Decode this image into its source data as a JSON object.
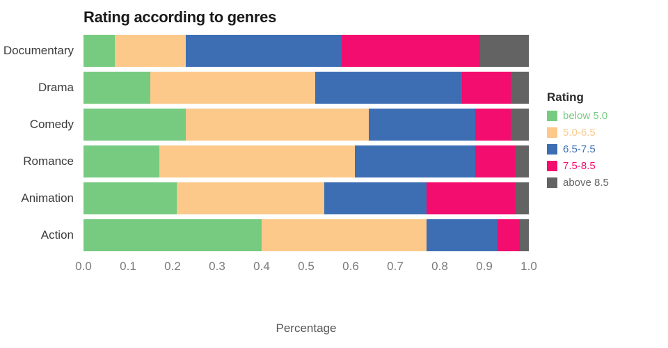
{
  "legend": {
    "title": "Rating",
    "entries": [
      {
        "label": "below 5.0",
        "color": "#76cb80"
      },
      {
        "label": "5.0-6.5",
        "color": "#fcc98b"
      },
      {
        "label": "6.5-7.5",
        "color": "#3d6eb4"
      },
      {
        "label": "7.5-8.5",
        "color": "#f20d6e"
      },
      {
        "label": "above 8.5",
        "color": "#636363"
      }
    ]
  },
  "chart_data": {
    "type": "bar",
    "orientation": "horizontal",
    "stacked": true,
    "title": "Rating according to genres",
    "xlabel": "Percentage",
    "ylabel": "",
    "xlim": [
      0,
      1
    ],
    "xticks": [
      "0.0",
      "0.1",
      "0.2",
      "0.3",
      "0.4",
      "0.5",
      "0.6",
      "0.7",
      "0.8",
      "0.9",
      "1.0"
    ],
    "grid": false,
    "legend_position": "right",
    "categories": [
      "Documentary",
      "Drama",
      "Comedy",
      "Romance",
      "Animation",
      "Action"
    ],
    "series": [
      {
        "name": "below 5.0",
        "color": "#76cb80",
        "values": [
          0.07,
          0.15,
          0.23,
          0.17,
          0.21,
          0.4
        ]
      },
      {
        "name": "5.0-6.5",
        "color": "#fcc98b",
        "values": [
          0.16,
          0.37,
          0.41,
          0.44,
          0.33,
          0.37
        ]
      },
      {
        "name": "6.5-7.5",
        "color": "#3d6eb4",
        "values": [
          0.35,
          0.33,
          0.24,
          0.27,
          0.23,
          0.16
        ]
      },
      {
        "name": "7.5-8.5",
        "color": "#f20d6e",
        "values": [
          0.31,
          0.11,
          0.08,
          0.09,
          0.2,
          0.05
        ]
      },
      {
        "name": "above 8.5",
        "color": "#636363",
        "values": [
          0.11,
          0.04,
          0.04,
          0.03,
          0.03,
          0.02
        ]
      }
    ]
  }
}
